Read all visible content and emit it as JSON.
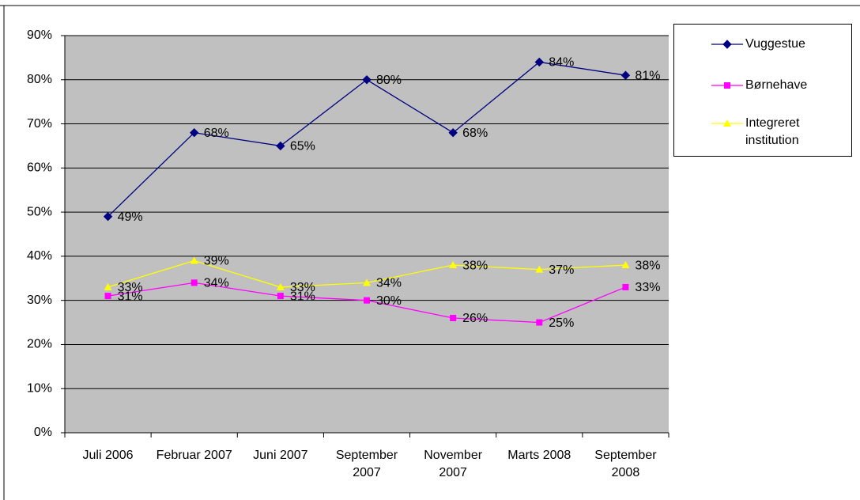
{
  "chart_data": {
    "type": "line",
    "categories": [
      "Juli 2006",
      "Februar 2007",
      "Juni 2007",
      "September 2007",
      "November 2007",
      "Marts 2008",
      "September 2008"
    ],
    "series": [
      {
        "name": "Vuggestue",
        "color": "#000080",
        "marker": "diamond",
        "values": [
          49,
          68,
          65,
          80,
          68,
          84,
          81
        ],
        "value_labels": [
          "49%",
          "68%",
          "65%",
          "80%",
          "68%",
          "84%",
          "81%"
        ]
      },
      {
        "name": "Børnehave",
        "color": "#ff00ff",
        "marker": "square",
        "values": [
          31,
          34,
          31,
          30,
          26,
          25,
          33
        ],
        "value_labels": [
          "31%",
          "34%",
          "31%",
          "30%",
          "26%",
          "25%",
          "33%"
        ]
      },
      {
        "name": "Integreret institution",
        "color": "#ffff00",
        "marker": "triangle",
        "values": [
          33,
          39,
          33,
          34,
          38,
          37,
          38
        ],
        "value_labels": [
          "33%",
          "39%",
          "33%",
          "34%",
          "38%",
          "37%",
          "38%"
        ]
      }
    ],
    "ylim": [
      0,
      90
    ],
    "yticks": [
      {
        "value": 0,
        "label": "0%"
      },
      {
        "value": 10,
        "label": "10%"
      },
      {
        "value": 20,
        "label": "20%"
      },
      {
        "value": 30,
        "label": "30%"
      },
      {
        "value": 40,
        "label": "40%"
      },
      {
        "value": 50,
        "label": "50%"
      },
      {
        "value": 60,
        "label": "60%"
      },
      {
        "value": 70,
        "label": "70%"
      },
      {
        "value": 80,
        "label": "80%"
      },
      {
        "value": 90,
        "label": "90%"
      }
    ],
    "grid": true,
    "legend": "right"
  }
}
